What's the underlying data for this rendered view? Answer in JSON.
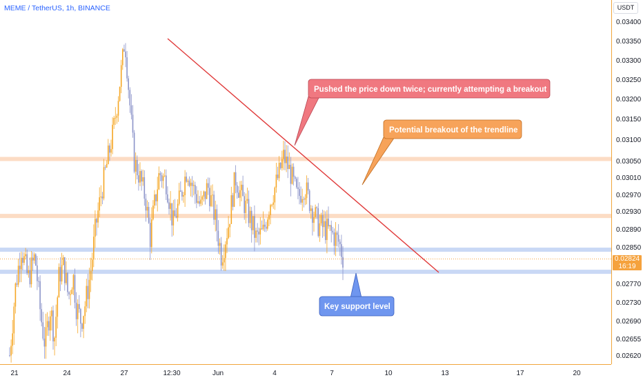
{
  "header": {
    "symbol_title": "MEME / TetherUS, 1h, BINANCE",
    "currency": "USDT"
  },
  "last_price": {
    "value": "0.02824",
    "countdown": "16:19"
  },
  "chart_data": {
    "type": "candlestick",
    "title": "",
    "ylim": [
      0.026,
      0.0341
    ],
    "y_ticks": [
      "0.03400",
      "0.03350",
      "0.03300",
      "0.03250",
      "0.03200",
      "0.03150",
      "0.03100",
      "0.03050",
      "0.03010",
      "0.02970",
      "0.02930",
      "0.02890",
      "0.02850",
      "0.02810",
      "0.02770",
      "0.02730",
      "0.02690",
      "0.02655",
      "0.02620"
    ],
    "x_ticks": [
      "21",
      "24",
      "27",
      "12:30",
      "Jun",
      "4",
      "7",
      "10",
      "13",
      "17",
      "20"
    ],
    "grid": false,
    "up_color": "#f5a623",
    "down_color": "#8b93c9",
    "horizontal_levels": [
      {
        "price": 0.03054,
        "color": "#fcdcc4"
      },
      {
        "price": 0.02919,
        "color": "#fcdcc4"
      },
      {
        "price": 0.02844,
        "color": "#c9d8f5"
      },
      {
        "price": 0.02796,
        "color": "#c9d8f5"
      }
    ],
    "trendline": {
      "color": "#e03a3a"
    },
    "annotations": [
      {
        "text": "Pushed the price down twice; currently attempting a breakout",
        "bg": "#f07880",
        "color": "#ffffff"
      },
      {
        "text": "Potential breakout of the trendline",
        "bg": "#f7a35a",
        "color": "#ffffff"
      },
      {
        "text": "Key support level",
        "bg": "#6f96ef",
        "color": "#ffffff"
      }
    ],
    "price_path": [
      {
        "t": 0.0,
        "p": 0.0262
      },
      {
        "t": 0.05,
        "p": 0.0276
      },
      {
        "t": 0.1,
        "p": 0.0285
      },
      {
        "t": 0.16,
        "p": 0.0278
      },
      {
        "t": 0.22,
        "p": 0.0283
      },
      {
        "t": 0.27,
        "p": 0.027
      },
      {
        "t": 0.31,
        "p": 0.0264
      },
      {
        "t": 0.35,
        "p": 0.0272
      },
      {
        "t": 0.39,
        "p": 0.0266
      },
      {
        "t": 0.43,
        "p": 0.0279
      },
      {
        "t": 0.47,
        "p": 0.0281
      },
      {
        "t": 0.51,
        "p": 0.0274
      },
      {
        "t": 0.55,
        "p": 0.0279
      },
      {
        "t": 0.58,
        "p": 0.0272
      },
      {
        "t": 0.62,
        "p": 0.0269
      },
      {
        "t": 0.66,
        "p": 0.0273
      },
      {
        "t": 0.7,
        "p": 0.0279
      },
      {
        "t": 0.75,
        "p": 0.029
      },
      {
        "t": 0.8,
        "p": 0.0298
      },
      {
        "t": 0.85,
        "p": 0.0305
      },
      {
        "t": 0.9,
        "p": 0.0312
      },
      {
        "t": 0.94,
        "p": 0.032
      },
      {
        "t": 0.98,
        "p": 0.033
      },
      {
        "t": 1.0,
        "p": 0.03355
      },
      {
        "t": 1.04,
        "p": 0.032
      },
      {
        "t": 1.08,
        "p": 0.0305
      },
      {
        "t": 1.13,
        "p": 0.0301
      },
      {
        "t": 1.18,
        "p": 0.0296
      },
      {
        "t": 1.22,
        "p": 0.0287
      },
      {
        "t": 1.26,
        "p": 0.0295
      },
      {
        "t": 1.3,
        "p": 0.0302
      },
      {
        "t": 1.36,
        "p": 0.03
      },
      {
        "t": 1.42,
        "p": 0.029
      },
      {
        "t": 1.48,
        "p": 0.0296
      },
      {
        "t": 1.54,
        "p": 0.0303
      },
      {
        "t": 1.6,
        "p": 0.0298
      },
      {
        "t": 1.66,
        "p": 0.0294
      },
      {
        "t": 1.72,
        "p": 0.0299
      },
      {
        "t": 1.78,
        "p": 0.0292
      },
      {
        "t": 1.84,
        "p": 0.0283
      },
      {
        "t": 1.9,
        "p": 0.029
      },
      {
        "t": 1.96,
        "p": 0.0301
      },
      {
        "t": 2.02,
        "p": 0.0296
      },
      {
        "t": 2.08,
        "p": 0.0292
      },
      {
        "t": 2.14,
        "p": 0.0287
      },
      {
        "t": 2.2,
        "p": 0.0288
      },
      {
        "t": 2.26,
        "p": 0.0295
      },
      {
        "t": 2.32,
        "p": 0.03
      },
      {
        "t": 2.38,
        "p": 0.0306
      },
      {
        "t": 2.44,
        "p": 0.0302
      },
      {
        "t": 2.5,
        "p": 0.0296
      },
      {
        "t": 2.56,
        "p": 0.0299
      },
      {
        "t": 2.62,
        "p": 0.0294
      },
      {
        "t": 2.68,
        "p": 0.029
      },
      {
        "t": 2.74,
        "p": 0.0289
      },
      {
        "t": 2.8,
        "p": 0.0288
      },
      {
        "t": 2.86,
        "p": 0.0286
      },
      {
        "t": 2.9,
        "p": 0.02824
      }
    ]
  }
}
